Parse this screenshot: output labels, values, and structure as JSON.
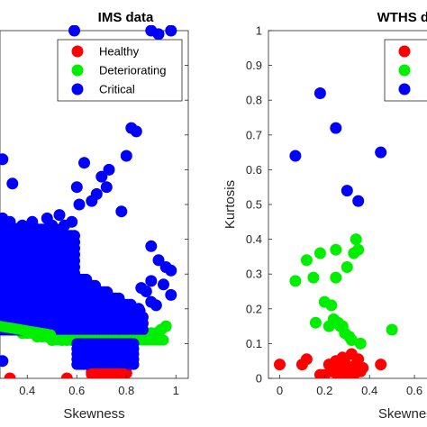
{
  "chart_data": [
    {
      "type": "scatter",
      "title": "IMS data",
      "xlabel": "Skewness",
      "ylabel": "",
      "xlim": [
        0.29,
        1.05
      ],
      "ylim": [
        0,
        1
      ],
      "xticks": [
        "0.4",
        "0.6",
        "0.8",
        "1"
      ],
      "xtick_values": [
        0.4,
        0.6,
        0.8,
        1.0
      ],
      "legend": {
        "placement": "top-right",
        "entries": [
          "Healthy",
          "Deteriorating",
          "Critical"
        ]
      },
      "colors": {
        "Healthy": "#ff0000",
        "Deteriorating": "#00ee00",
        "Critical": "#0000ff"
      },
      "series": [
        {
          "name": "Healthy",
          "points": [
            [
              0.33,
              0
            ],
            [
              0.56,
              0
            ],
            [
              0.66,
              0.018
            ],
            [
              0.68,
              0.012
            ],
            [
              0.7,
              0.02
            ],
            [
              0.72,
              0.015
            ],
            [
              0.74,
              0.01
            ],
            [
              0.76,
              0.02
            ],
            [
              0.78,
              0.012
            ],
            [
              0.8,
              0.015
            ],
            [
              0.69,
              0.005
            ],
            [
              0.73,
              0.003
            ],
            [
              0.77,
              0.006
            ],
            [
              0.71,
              0.03
            ],
            [
              0.75,
              0.028
            ]
          ]
        },
        {
          "name": "Deteriorating",
          "points": [
            [
              0.3,
              0.16
            ],
            [
              0.32,
              0.15
            ],
            [
              0.34,
              0.14
            ],
            [
              0.36,
              0.14
            ],
            [
              0.38,
              0.13
            ],
            [
              0.4,
              0.13
            ],
            [
              0.42,
              0.13
            ],
            [
              0.44,
              0.12
            ],
            [
              0.46,
              0.12
            ],
            [
              0.48,
              0.12
            ],
            [
              0.5,
              0.11
            ],
            [
              0.52,
              0.12
            ],
            [
              0.54,
              0.11
            ],
            [
              0.56,
              0.11
            ],
            [
              0.58,
              0.11
            ],
            [
              0.6,
              0.11
            ],
            [
              0.62,
              0.11
            ],
            [
              0.64,
              0.11
            ],
            [
              0.66,
              0.11
            ],
            [
              0.68,
              0.11
            ],
            [
              0.7,
              0.11
            ],
            [
              0.72,
              0.11
            ],
            [
              0.74,
              0.11
            ],
            [
              0.76,
              0.11
            ],
            [
              0.78,
              0.11
            ],
            [
              0.8,
              0.11
            ],
            [
              0.82,
              0.11
            ],
            [
              0.84,
              0.11
            ],
            [
              0.86,
              0.12
            ],
            [
              0.88,
              0.12
            ],
            [
              0.9,
              0.13
            ],
            [
              0.92,
              0.13
            ],
            [
              0.94,
              0.14
            ],
            [
              0.96,
              0.15
            ]
          ]
        },
        {
          "name": "Critical",
          "points": [
            [
              0.59,
              1.0
            ],
            [
              0.9,
              1.0
            ],
            [
              0.93,
              0.99
            ],
            [
              0.98,
              1.0
            ],
            [
              0.3,
              0.63
            ],
            [
              0.34,
              0.56
            ],
            [
              0.3,
              0.46
            ],
            [
              0.33,
              0.45
            ],
            [
              0.36,
              0.43
            ],
            [
              0.38,
              0.44
            ],
            [
              0.42,
              0.45
            ],
            [
              0.45,
              0.42
            ],
            [
              0.48,
              0.46
            ],
            [
              0.5,
              0.44
            ],
            [
              0.53,
              0.47
            ],
            [
              0.55,
              0.44
            ],
            [
              0.58,
              0.45
            ],
            [
              0.61,
              0.5
            ],
            [
              0.63,
              0.62
            ],
            [
              0.6,
              0.55
            ],
            [
              0.66,
              0.51
            ],
            [
              0.68,
              0.53
            ],
            [
              0.7,
              0.58
            ],
            [
              0.72,
              0.55
            ],
            [
              0.73,
              0.6
            ],
            [
              0.78,
              0.48
            ],
            [
              0.8,
              0.64
            ],
            [
              0.82,
              0.72
            ],
            [
              0.84,
              0.71
            ],
            [
              0.9,
              0.38
            ],
            [
              0.93,
              0.34
            ],
            [
              0.96,
              0.32
            ],
            [
              0.98,
              0.31
            ],
            [
              0.86,
              0.26
            ],
            [
              0.88,
              0.25
            ],
            [
              0.9,
              0.28
            ],
            [
              0.95,
              0.27
            ],
            [
              0.98,
              0.24
            ],
            [
              0.9,
              0.22
            ],
            [
              0.92,
              0.21
            ],
            [
              0.85,
              0.2
            ],
            [
              0.83,
              0.19
            ],
            [
              0.8,
              0.21
            ],
            [
              0.75,
              0.22
            ],
            [
              0.7,
              0.18
            ],
            [
              0.66,
              0.19
            ],
            [
              0.64,
              0.18
            ],
            [
              0.62,
              0.17
            ],
            [
              0.6,
              0.18
            ],
            [
              0.56,
              0.17
            ],
            [
              0.52,
              0.16
            ],
            [
              0.5,
              0.15
            ],
            [
              0.47,
              0.15
            ],
            [
              0.44,
              0.15
            ],
            [
              0.4,
              0.16
            ],
            [
              0.36,
              0.17
            ],
            [
              0.32,
              0.18
            ],
            [
              0.62,
              0.06
            ],
            [
              0.64,
              0.08
            ],
            [
              0.66,
              0.05
            ],
            [
              0.7,
              0.07
            ],
            [
              0.74,
              0.06
            ],
            [
              0.78,
              0.07
            ],
            [
              0.8,
              0.05
            ],
            [
              0.82,
              0.08
            ],
            [
              0.68,
              0.09
            ],
            [
              0.72,
              0.09
            ],
            [
              0.76,
              0.09
            ],
            [
              0.3,
              0.05
            ]
          ]
        }
      ]
    },
    {
      "type": "scatter",
      "title": "WTHS dat",
      "xlabel": "Skewness",
      "ylabel": "Kurtosis",
      "xlim": [
        -0.05,
        0.72
      ],
      "ylim": [
        0,
        1
      ],
      "xticks": [
        "0",
        "0.2",
        "0.4",
        "0.6"
      ],
      "xtick_values": [
        0,
        0.2,
        0.4,
        0.6
      ],
      "yticks": [
        "0",
        "0.1",
        "0.2",
        "0.3",
        "0.4",
        "0.5",
        "0.6",
        "0.7",
        "0.8",
        "0.9",
        "1"
      ],
      "ytick_values": [
        0,
        0.1,
        0.2,
        0.3,
        0.4,
        0.5,
        0.6,
        0.7,
        0.8,
        0.9,
        1.0
      ],
      "legend": {
        "placement": "top-right",
        "entries": []
      },
      "colors": {
        "Healthy": "#ff0000",
        "Deteriorating": "#00ee00",
        "Critical": "#0000ff"
      },
      "series": [
        {
          "name": "",
          "points": [
            [
              0,
              0.04
            ],
            [
              0.1,
              0.04
            ],
            [
              0.12,
              0.055
            ],
            [
              0.18,
              0.01
            ],
            [
              0.2,
              0.01
            ],
            [
              0.22,
              0.04
            ],
            [
              0.23,
              0.02
            ],
            [
              0.24,
              0.035
            ],
            [
              0.25,
              0.05
            ],
            [
              0.26,
              0.03
            ],
            [
              0.27,
              0.015
            ],
            [
              0.28,
              0.06
            ],
            [
              0.29,
              0.045
            ],
            [
              0.3,
              0.02
            ],
            [
              0.31,
              0.03
            ],
            [
              0.32,
              0.07
            ],
            [
              0.33,
              0.01
            ],
            [
              0.34,
              0.04
            ],
            [
              0.35,
              0.055
            ],
            [
              0.36,
              0.02
            ],
            [
              0.37,
              0.03
            ],
            [
              0.45,
              0.04
            ],
            [
              0.26,
              0.005
            ],
            [
              0.3,
              0.005
            ]
          ]
        },
        {
          "name": "",
          "points": [
            [
              0.07,
              0.28
            ],
            [
              0.12,
              0.34
            ],
            [
              0.18,
              0.36
            ],
            [
              0.15,
              0.29
            ],
            [
              0.16,
              0.16
            ],
            [
              0.2,
              0.22
            ],
            [
              0.22,
              0.15
            ],
            [
              0.24,
              0.17
            ],
            [
              0.25,
              0.37
            ],
            [
              0.26,
              0.16
            ],
            [
              0.27,
              0.15
            ],
            [
              0.28,
              0.15
            ],
            [
              0.29,
              0.13
            ],
            [
              0.3,
              0.32
            ],
            [
              0.32,
              0.11
            ],
            [
              0.33,
              0.36
            ],
            [
              0.34,
              0.4
            ],
            [
              0.35,
              0.37
            ],
            [
              0.36,
              0.1
            ],
            [
              0.31,
              0.12
            ],
            [
              0.25,
              0.29
            ],
            [
              0.23,
              0.21
            ],
            [
              0.5,
              0.14
            ]
          ]
        },
        {
          "name": "",
          "points": [
            [
              0.07,
              0.64
            ],
            [
              0.18,
              0.82
            ],
            [
              0.25,
              0.72
            ],
            [
              0.3,
              0.54
            ],
            [
              0.35,
              0.51
            ],
            [
              0.45,
              0.65
            ]
          ]
        }
      ]
    }
  ]
}
